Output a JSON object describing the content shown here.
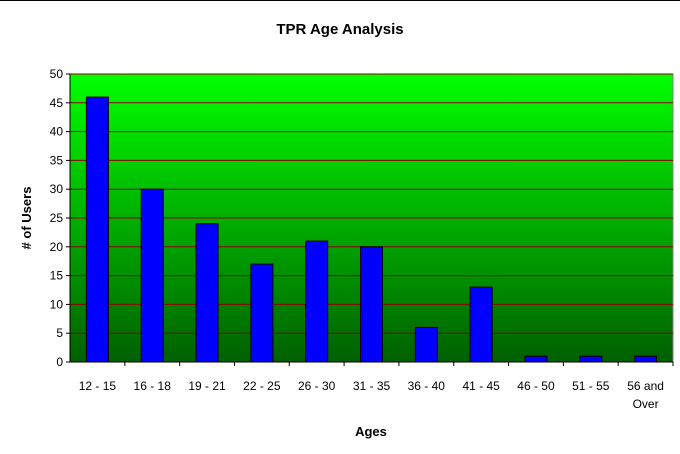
{
  "chart_data": {
    "type": "bar",
    "title": "TPR Age Analysis",
    "xlabel": "Ages",
    "ylabel": "# of Users",
    "categories": [
      "12 - 15",
      "16 - 18",
      "19 - 21",
      "22 - 25",
      "26 - 30",
      "31 - 35",
      "36 - 40",
      "41 - 45",
      "46 - 50",
      "51 - 55",
      "56 and Over"
    ],
    "values": [
      46,
      30,
      24,
      17,
      21,
      20,
      6,
      13,
      1,
      1,
      1
    ],
    "ylim": [
      0,
      50
    ],
    "yticks": [
      "0",
      "5",
      "10",
      "15",
      "20",
      "25",
      "30",
      "35",
      "40",
      "45",
      "50"
    ],
    "grid": true,
    "legend": "none",
    "colors": {
      "bar_fill": "#0000ff",
      "bar_stroke": "#000000",
      "gridline": "#8b0000",
      "plot_bg_top": "#00ff00",
      "plot_bg_bottom": "#006000"
    }
  }
}
